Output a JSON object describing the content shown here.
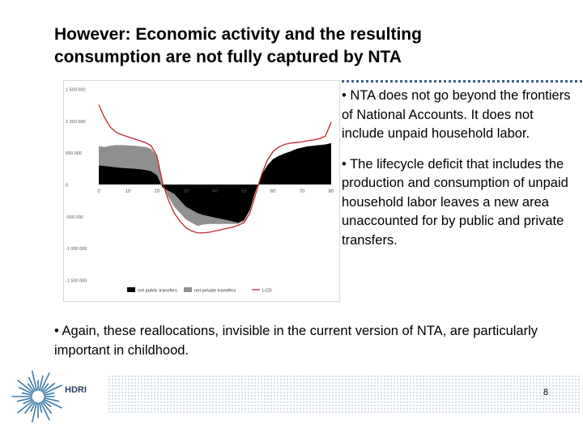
{
  "slide": {
    "title_line1": "However: Economic activity and the resulting",
    "title_line2": "consumption are not fully captured by NTA",
    "bullet1": "• NTA does not go beyond the frontiers of National Accounts. It does not include unpaid household labor.",
    "bullet2": "• The lifecycle deficit that includes the production and consumption of unpaid household labor leaves a new area unaccounted for by public and private transfers.",
    "bottom_bullet": "• Again, these reallocations, invisible in the current version of NTA, are particularly important in childhood.",
    "page_number": "8",
    "logo_label": "HDRI"
  },
  "chart_data": {
    "type": "area",
    "x": [
      0,
      2,
      4,
      6,
      8,
      10,
      12,
      14,
      16,
      18,
      20,
      22,
      24,
      26,
      28,
      30,
      32,
      34,
      36,
      38,
      40,
      42,
      44,
      46,
      48,
      50,
      52,
      54,
      56,
      58,
      60,
      62,
      64,
      66,
      68,
      70,
      72,
      74,
      76,
      78,
      80
    ],
    "xticks": [
      "0",
      "10",
      "20",
      "30",
      "40",
      "50",
      "60",
      "70",
      "80"
    ],
    "yticks": [
      "1 500 000",
      "1 000 000",
      "500 000",
      "0",
      "-500 000",
      "-1 000 000",
      "-1 500 000"
    ],
    "ylim": [
      -1500000,
      1500000
    ],
    "xlim": [
      0,
      80
    ],
    "series": [
      {
        "name": "net public transfers",
        "color": "#000000",
        "values": [
          300000,
          290000,
          280000,
          270000,
          260000,
          255000,
          250000,
          240000,
          230000,
          210000,
          150000,
          -50000,
          -100000,
          -150000,
          -250000,
          -350000,
          -400000,
          -450000,
          -480000,
          -500000,
          -520000,
          -540000,
          -560000,
          -580000,
          -600000,
          -560000,
          -400000,
          -100000,
          150000,
          300000,
          400000,
          450000,
          490000,
          520000,
          560000,
          580000,
          600000,
          610000,
          620000,
          630000,
          650000
        ]
      },
      {
        "name": "net private transfers",
        "color": "#8f8f8f",
        "values": [
          300000,
          300000,
          330000,
          350000,
          360000,
          360000,
          360000,
          360000,
          360000,
          350000,
          300000,
          50000,
          -100000,
          -200000,
          -200000,
          -200000,
          -200000,
          -200000,
          -150000,
          -120000,
          -100000,
          -80000,
          -60000,
          -40000,
          -20000,
          -20000,
          -10000,
          0,
          0,
          0,
          0,
          0,
          0,
          0,
          0,
          0,
          0,
          0,
          0,
          0,
          0
        ]
      },
      {
        "name": "LCD",
        "color": "#c0262c",
        "values": [
          1250000,
          1050000,
          900000,
          820000,
          780000,
          750000,
          720000,
          690000,
          660000,
          610000,
          450000,
          20000,
          -250000,
          -450000,
          -580000,
          -680000,
          -730000,
          -760000,
          -760000,
          -750000,
          -730000,
          -710000,
          -690000,
          -670000,
          -640000,
          -600000,
          -450000,
          -150000,
          150000,
          380000,
          520000,
          590000,
          630000,
          650000,
          660000,
          670000,
          690000,
          700000,
          720000,
          760000,
          980000
        ]
      }
    ],
    "legend": [
      "net public transfers",
      "net private transfers",
      "LCD"
    ],
    "legend_position": "bottom"
  },
  "colors": {
    "accent": "#3a5f8a",
    "lcd": "#c0262c",
    "public": "#000000",
    "private": "#8f8f8f"
  }
}
